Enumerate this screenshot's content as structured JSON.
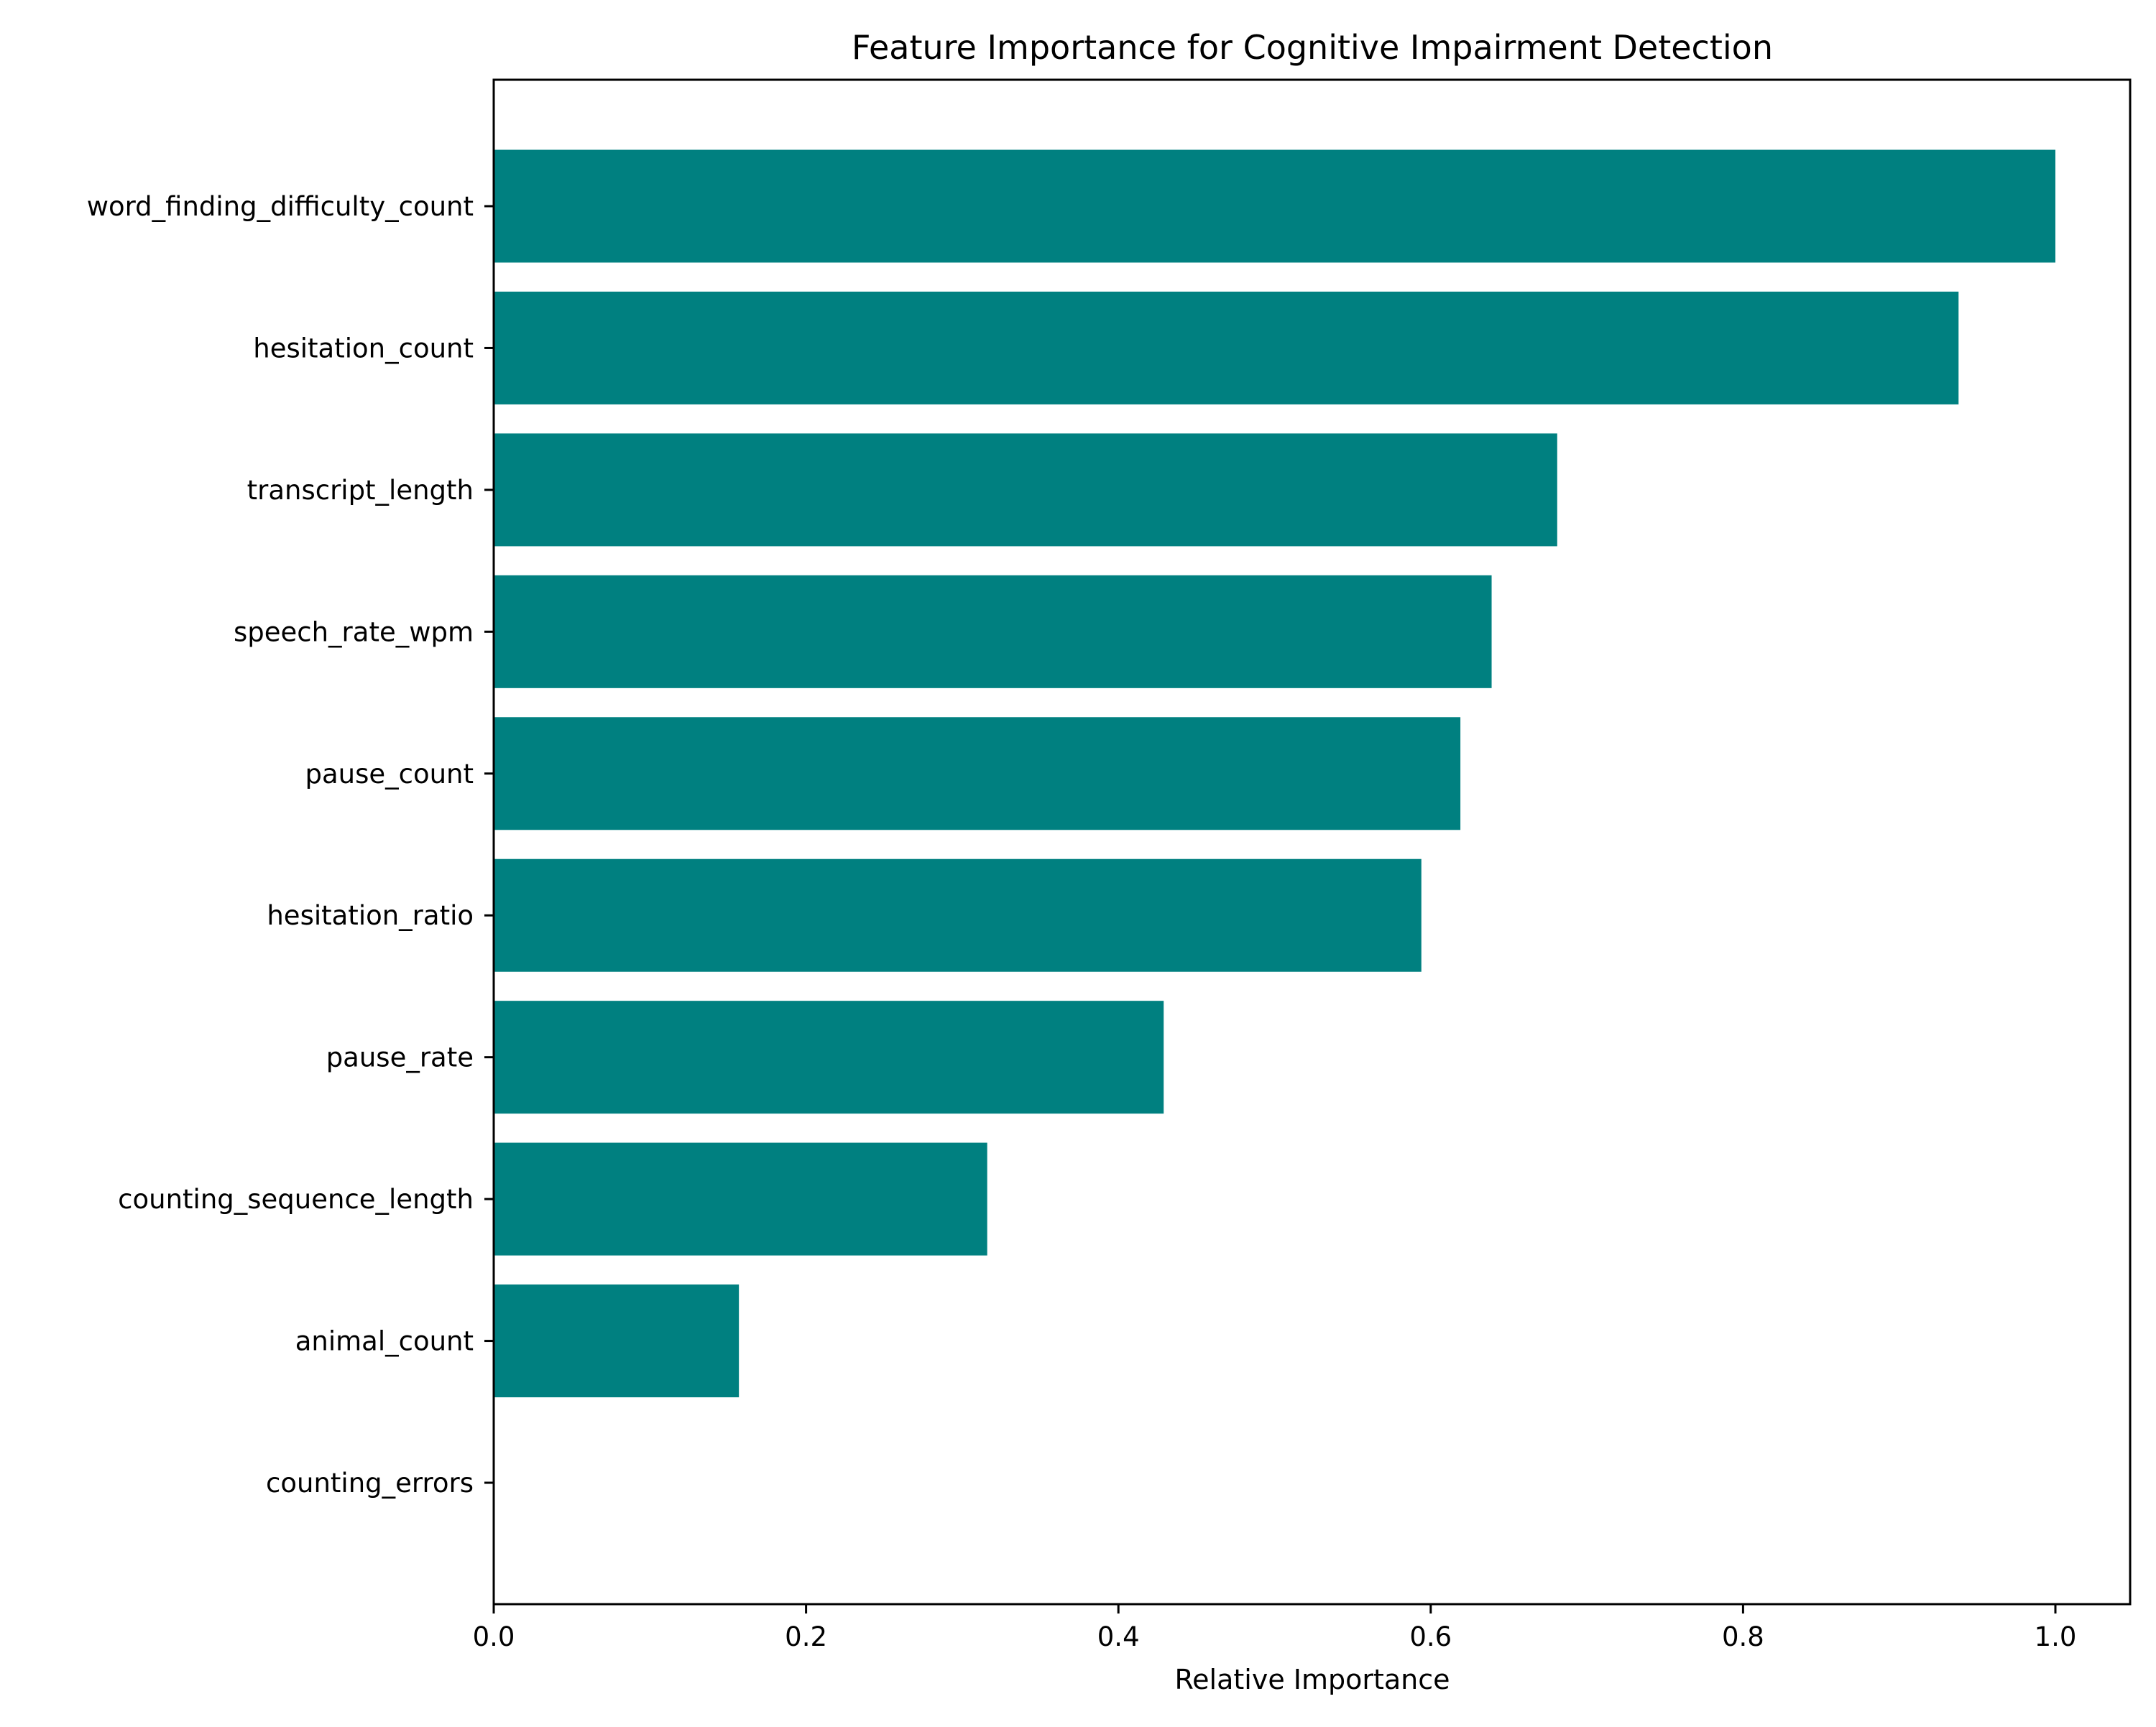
{
  "chart_data": {
    "type": "bar",
    "orientation": "horizontal",
    "title": "Feature Importance for Cognitive Impairment Detection",
    "xlabel": "Relative Importance",
    "ylabel": "",
    "categories": [
      "word_finding_difficulty_count",
      "hesitation_count",
      "transcript_length",
      "speech_rate_wpm",
      "pause_count",
      "hesitation_ratio",
      "pause_rate",
      "counting_sequence_length",
      "animal_count",
      "counting_errors"
    ],
    "values": [
      1.0,
      0.938,
      0.681,
      0.639,
      0.619,
      0.594,
      0.429,
      0.316,
      0.157,
      0.0
    ],
    "xlim": [
      0,
      1.05
    ],
    "xticks": [
      "0.0",
      "0.2",
      "0.4",
      "0.6",
      "0.8",
      "1.0"
    ],
    "bar_color": "#008080",
    "grid": false,
    "legend": false
  }
}
